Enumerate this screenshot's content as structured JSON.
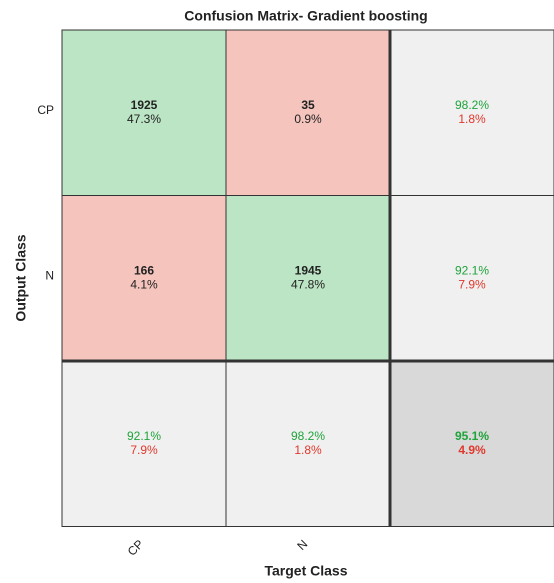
{
  "chart_data": {
    "type": "confusion",
    "title": "Confusion Matrix- Gradient boosting",
    "xlabel": "Target Class",
    "ylabel": "Output Class",
    "classes": [
      "CP",
      "N"
    ],
    "cells": [
      [
        {
          "count": 1925,
          "pct": "47.3%"
        },
        {
          "count": 35,
          "pct": "0.9%"
        }
      ],
      [
        {
          "count": 166,
          "pct": "4.1%"
        },
        {
          "count": 1945,
          "pct": "47.8%"
        }
      ]
    ],
    "row_summary": [
      [
        "98.2%",
        "1.8%"
      ],
      [
        "92.1%",
        "7.9%"
      ]
    ],
    "col_summary": [
      [
        "92.1%",
        "7.9%"
      ],
      [
        "98.2%",
        "1.8%"
      ]
    ],
    "overall": [
      "95.1%",
      "4.9%"
    ],
    "colors": {
      "correct": "#bce5c5",
      "wrong": "#f4c4bd",
      "summary": "#f0f0f0",
      "overall": "#d9d9d9",
      "good_text": "#1fa33a",
      "bad_text": "#e0382c"
    }
  }
}
